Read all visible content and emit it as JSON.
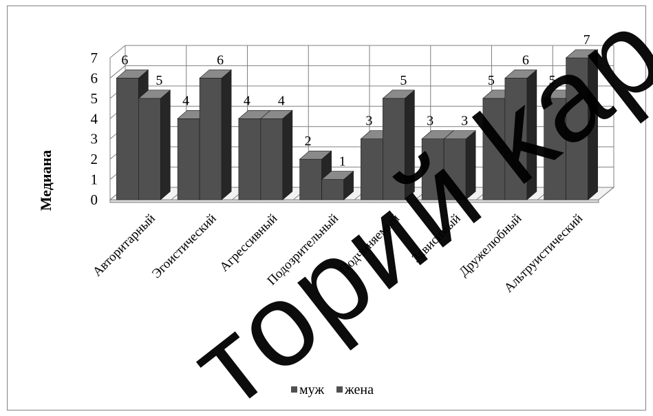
{
  "chart_data": {
    "type": "bar",
    "title": "",
    "xlabel": "",
    "ylabel": "Медиана",
    "ylim": [
      0,
      7
    ],
    "yticks": [
      0,
      1,
      2,
      3,
      4,
      5,
      6,
      7
    ],
    "grid": true,
    "legend_position": "bottom",
    "categories": [
      "Авторитарный",
      "Эгоистический",
      "Агрессивный",
      "Подозрительный",
      "Подчиняемый",
      "Зависимый",
      "Дружелюбный",
      "Альтруистический"
    ],
    "series": [
      {
        "name": "муж",
        "values": [
          6,
          4,
          4,
          2,
          3,
          3,
          5,
          5
        ]
      },
      {
        "name": "жена",
        "values": [
          5,
          6,
          4,
          1,
          5,
          3,
          6,
          7
        ]
      }
    ]
  },
  "colors": {
    "bar_front": "#505050",
    "bar_side": "#262626",
    "bar_top": "#8a8a8a",
    "grid": "#7f7f7f",
    "frame": "#808080",
    "text": "#000000"
  },
  "watermark": {
    "text": "торий kap"
  }
}
